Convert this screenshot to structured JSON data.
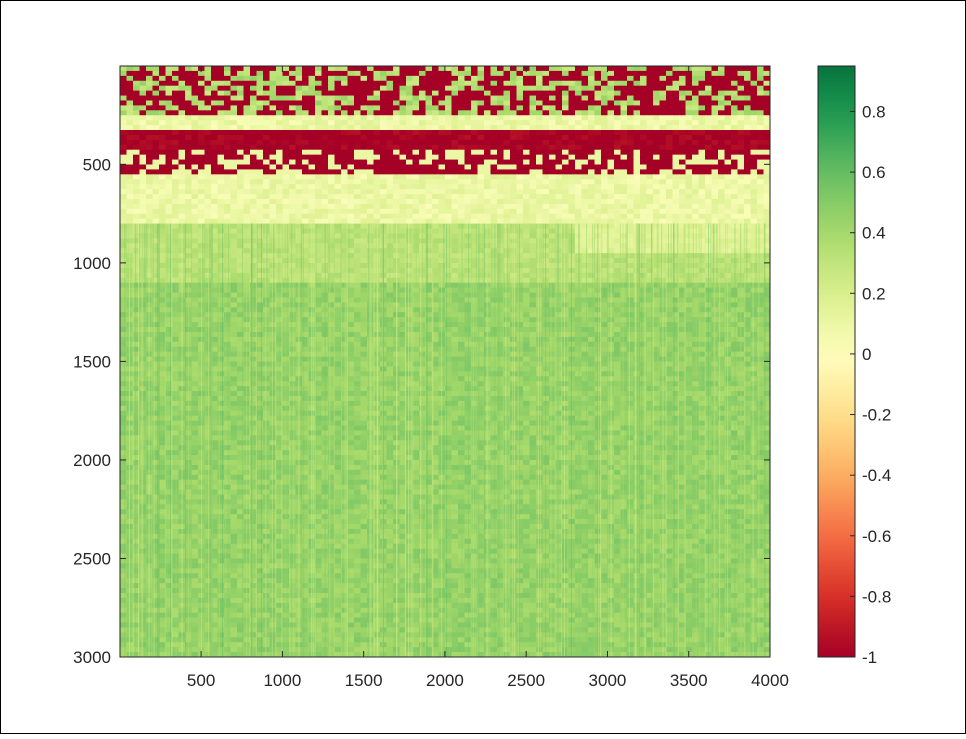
{
  "chart_data": {
    "type": "heatmap",
    "title": "",
    "xlabel": "",
    "ylabel": "",
    "xlim": [
      1,
      4000
    ],
    "ylim": [
      3000,
      1
    ],
    "y_axis_reversed": true,
    "grid": false,
    "x_ticks": [
      500,
      1000,
      1500,
      2000,
      2500,
      3000,
      3500,
      4000
    ],
    "x_tick_labels": [
      "500",
      "1000",
      "1500",
      "2000",
      "2500",
      "3000",
      "3500",
      "4000"
    ],
    "y_ticks": [
      500,
      1000,
      1500,
      2000,
      2500,
      3000
    ],
    "y_tick_labels": [
      "500",
      "1000",
      "1500",
      "2000",
      "2500",
      "3000"
    ],
    "colorbar": {
      "placement": "right",
      "range": [
        -1,
        0.95
      ],
      "ticks": [
        0.8,
        0.6,
        0.4,
        0.2,
        0,
        -0.2,
        -0.4,
        -0.6,
        -0.8,
        -1
      ],
      "tick_labels": [
        "0.8",
        "0.6",
        "0.4",
        "0.2",
        "0",
        "-0.2",
        "-0.4",
        "-0.6",
        "-0.8",
        "-1"
      ],
      "colors": [
        "#a50026",
        "#d73027",
        "#f46d43",
        "#fdae61",
        "#fee08b",
        "#ffffbf",
        "#d9ef8b",
        "#a6d96a",
        "#66bd63",
        "#1a9850",
        "#006837"
      ]
    },
    "regions": [
      {
        "y_range": [
          1,
          250
        ],
        "description_value": -0.5,
        "pattern": "mixed"
      },
      {
        "y_range": [
          250,
          330
        ],
        "value": 0.1
      },
      {
        "y_range": [
          330,
          400
        ],
        "value": -1
      },
      {
        "y_range": [
          400,
          430
        ],
        "value": -1
      },
      {
        "y_range": [
          430,
          550
        ],
        "value": -0.8
      },
      {
        "y_range": [
          550,
          800
        ],
        "value": 0.1
      },
      {
        "y_range": [
          800,
          1100
        ],
        "value": 0.3
      },
      {
        "y_range": [
          1100,
          3000
        ],
        "value": 0.45
      }
    ]
  },
  "colors": {
    "frame": "#000000",
    "axis": "#262626",
    "band_red": "#a50026",
    "field_green": "#3cb034",
    "light_green": "#9bd36b",
    "pale": "#d7efa0"
  }
}
